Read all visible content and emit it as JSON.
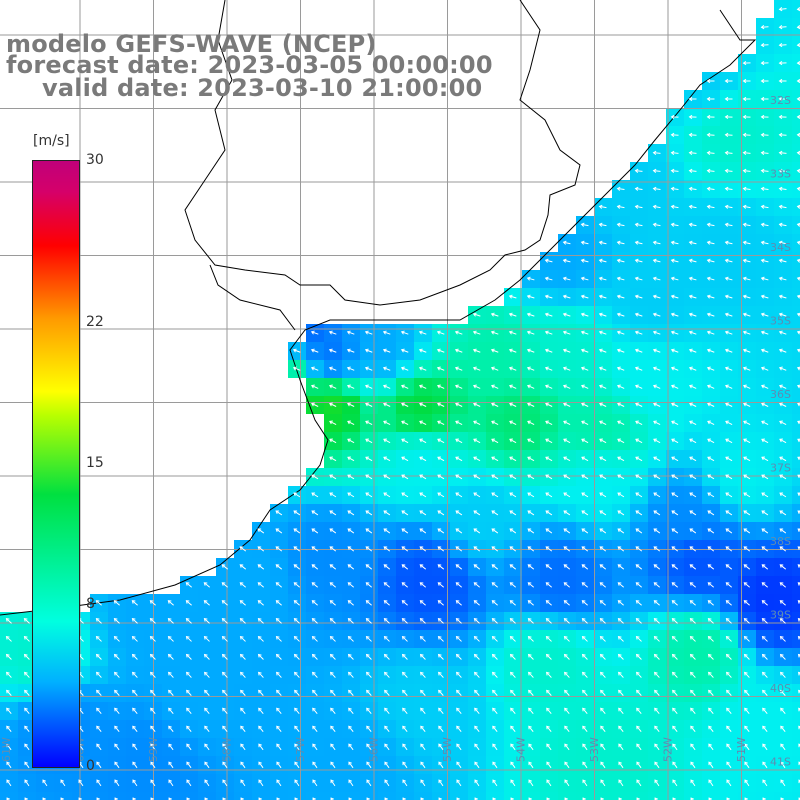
{
  "header": {
    "line1": "modelo GEFS-WAVE (NCEP)",
    "line2": "forecast date: 2023-03-05 00:00:00",
    "line3": "valid date: 2023-03-10 21:00:00"
  },
  "colorbar": {
    "unit": "[m/s]",
    "ticks": [
      {
        "label": "30",
        "value": 30
      },
      {
        "label": "22",
        "value": 22
      },
      {
        "label": "15",
        "value": 15
      },
      {
        "label": "8",
        "value": 8
      },
      {
        "label": "0",
        "value": 0
      }
    ],
    "colors": [
      "#0000ff",
      "#00b0ff",
      "#00ffe0",
      "#00e040",
      "#ffff00",
      "#ff9a00",
      "#ff0000",
      "#c0007a"
    ]
  },
  "lat_labels": [
    "32S",
    "33S",
    "34S",
    "35S",
    "36S",
    "37S",
    "38S",
    "39S",
    "40S",
    "41S"
  ],
  "lon_labels": [
    "61W",
    "60W",
    "59W",
    "58W",
    "57W",
    "56W",
    "55W",
    "54W",
    "53W",
    "52W",
    "51W"
  ],
  "colors": {
    "land": "#ffffff",
    "coast": "#000000",
    "grid": "#9a9a9a",
    "arrows": "#ffffff",
    "title": "#7a7a7a"
  }
}
